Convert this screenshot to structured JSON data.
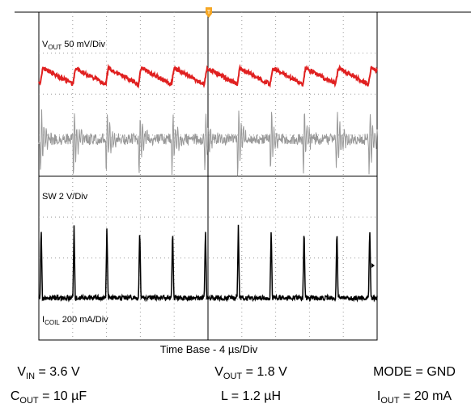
{
  "traces": [
    {
      "symbol": "V",
      "sub": "OUT",
      "scale": " 50 mV/Div"
    },
    {
      "symbol": "SW 2 V/Div"
    },
    {
      "symbol": "I",
      "sub": "COIL",
      "scale": " 200 mA/Div"
    }
  ],
  "caption": "Time Base - 4 µs/Div",
  "conditions": [
    [
      {
        "symbol": "V",
        "sub": "IN",
        "rest": " = 3.6 V"
      },
      {
        "symbol": "V",
        "sub": "OUT",
        "rest": " = 1.8 V"
      },
      {
        "symbol": "MODE = GND"
      }
    ],
    [
      {
        "symbol": "C",
        "sub": "OUT",
        "rest": " = 10 µF"
      },
      {
        "symbol": "L = 1.2 µH"
      },
      {
        "symbol": "I",
        "sub": "OUT",
        "rest": " = 20 mA"
      }
    ]
  ]
}
